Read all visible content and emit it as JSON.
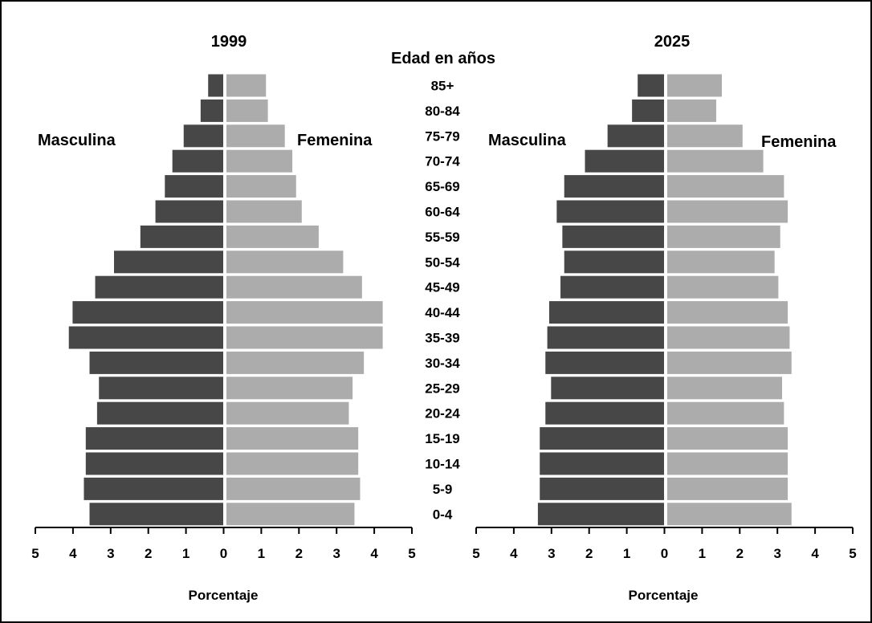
{
  "center_title": "Edad en años",
  "age_groups": [
    "85+",
    "80-84",
    "75-79",
    "70-74",
    "65-69",
    "60-64",
    "55-59",
    "50-54",
    "45-49",
    "40-44",
    "35-39",
    "30-34",
    "25-29",
    "20-24",
    "15-19",
    "10-14",
    "5-9",
    "0-4"
  ],
  "colors": {
    "male": "#474747",
    "female": "#acacac"
  },
  "chart_data": [
    {
      "type": "bar",
      "orientation": "horizontal-population-pyramid",
      "title": "1999",
      "left_label": "Masculina",
      "right_label": "Femenina",
      "xlabel": "Porcentaje",
      "xlim": [
        -5,
        5
      ],
      "tick_labels": [
        "5",
        "4",
        "3",
        "2",
        "1",
        "0",
        "1",
        "2",
        "3",
        "4",
        "5"
      ],
      "categories": [
        "85+",
        "80-84",
        "75-79",
        "70-74",
        "65-69",
        "60-64",
        "55-59",
        "50-54",
        "45-49",
        "40-44",
        "35-39",
        "30-34",
        "25-29",
        "20-24",
        "15-19",
        "10-14",
        "5-9",
        "0-4"
      ],
      "series": [
        {
          "name": "Masculina",
          "values": [
            0.4,
            0.6,
            1.05,
            1.35,
            1.55,
            1.8,
            2.2,
            2.9,
            3.4,
            4.0,
            4.1,
            3.55,
            3.3,
            3.35,
            3.65,
            3.65,
            3.7,
            3.55
          ]
        },
        {
          "name": "Femenina",
          "values": [
            1.05,
            1.1,
            1.55,
            1.75,
            1.85,
            2.0,
            2.45,
            3.1,
            3.6,
            4.15,
            4.15,
            3.65,
            3.35,
            3.25,
            3.5,
            3.5,
            3.55,
            3.4
          ]
        }
      ]
    },
    {
      "type": "bar",
      "orientation": "horizontal-population-pyramid",
      "title": "2025",
      "left_label": "Masculina",
      "right_label": "Femenina",
      "xlabel": "Porcentaje",
      "xlim": [
        -5,
        5
      ],
      "tick_labels": [
        "5",
        "4",
        "3",
        "2",
        "1",
        "0",
        "1",
        "2",
        "3",
        "4",
        "5"
      ],
      "categories": [
        "85+",
        "80-84",
        "75-79",
        "70-74",
        "65-69",
        "60-64",
        "55-59",
        "50-54",
        "45-49",
        "40-44",
        "35-39",
        "30-34",
        "25-29",
        "20-24",
        "15-19",
        "10-14",
        "5-9",
        "0-4"
      ],
      "series": [
        {
          "name": "Masculina",
          "values": [
            0.7,
            0.85,
            1.5,
            2.1,
            2.65,
            2.85,
            2.7,
            2.65,
            2.75,
            3.05,
            3.1,
            3.15,
            3.0,
            3.15,
            3.3,
            3.3,
            3.3,
            3.35
          ]
        },
        {
          "name": "Femenina",
          "values": [
            1.45,
            1.3,
            2.0,
            2.55,
            3.1,
            3.2,
            3.0,
            2.85,
            2.95,
            3.2,
            3.25,
            3.3,
            3.05,
            3.1,
            3.2,
            3.2,
            3.2,
            3.3
          ]
        }
      ]
    }
  ]
}
